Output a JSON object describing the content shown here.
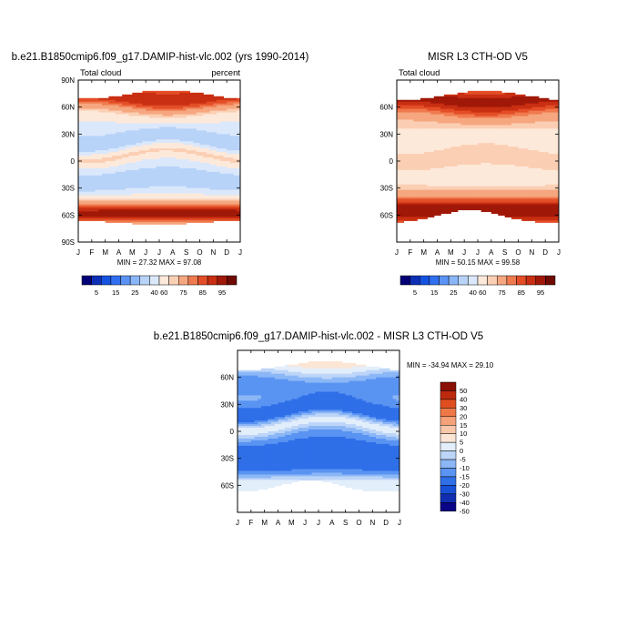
{
  "months": [
    "J",
    "F",
    "M",
    "A",
    "M",
    "J",
    "J",
    "A",
    "S",
    "O",
    "N",
    "D",
    "J"
  ],
  "lat_ticks_full": [
    "90N",
    "60N",
    "30N",
    "0",
    "30S",
    "60S",
    "90S"
  ],
  "lat_ticks_partial": [
    "60N",
    "30N",
    "0",
    "30S",
    "60S"
  ],
  "colorbar_top_labels": [
    "5",
    "15",
    "25",
    "40",
    "60",
    "75",
    "85",
    "95"
  ],
  "colorbar_diff_labels": [
    "50",
    "40",
    "30",
    "20",
    "15",
    "10",
    "5",
    "0",
    "-5",
    "-10",
    "-15",
    "-20",
    "-30",
    "-40",
    "-50"
  ],
  "palette_abs": [
    "#030077",
    "#0c2fb4",
    "#1552e0",
    "#2f6ff0",
    "#5a93f5",
    "#8ab6f7",
    "#b8d3f8",
    "#dbe8fb",
    "#fde9da",
    "#fbcfb4",
    "#f6a77f",
    "#f07a4f",
    "#e34e27",
    "#c92f12",
    "#a01808",
    "#6e0a03"
  ],
  "palette_diff": [
    "#0a0486",
    "#0f2fb0",
    "#1850d8",
    "#2f6fe8",
    "#5a94f2",
    "#8cb7f6",
    "#bcd5f8",
    "#e3eefb",
    "#fbe6d6",
    "#f9c8aa",
    "#f5a27a",
    "#ef7848",
    "#e04e20",
    "#bd2a0e",
    "#8a0f05"
  ],
  "chart_data": [
    {
      "type": "heatmap",
      "title": "b.e21.B1850cmip6.f09_g17.DAMIP-hist-vlc.002 (yrs 1990-2014)",
      "left_label": "Total cloud",
      "right_label": "percent",
      "stats": "MIN =  27.32 MAX =  97.08",
      "x_categories": [
        "J",
        "F",
        "M",
        "A",
        "M",
        "J",
        "J",
        "A",
        "S",
        "O",
        "N",
        "D",
        "J"
      ],
      "ylim": [
        -90,
        90
      ],
      "colorbar_levels": [
        5,
        10,
        15,
        20,
        25,
        30,
        40,
        50,
        60,
        65,
        75,
        80,
        85,
        90,
        95
      ]
    },
    {
      "type": "heatmap",
      "title": "MISR L3 CTH-OD V5",
      "left_label": "Total cloud",
      "stats": "MIN =  50.15 MAX =  99.58",
      "x_categories": [
        "J",
        "F",
        "M",
        "A",
        "M",
        "J",
        "J",
        "A",
        "S",
        "O",
        "N",
        "D",
        "J"
      ],
      "ylim": [
        -90,
        90
      ]
    },
    {
      "type": "heatmap",
      "title": "b.e21.B1850cmip6.f09_g17.DAMIP-hist-vlc.002 - MISR L3 CTH-OD V5",
      "stats": "MIN = -34.94 MAX =  29.10",
      "x_categories": [
        "J",
        "F",
        "M",
        "A",
        "M",
        "J",
        "J",
        "A",
        "S",
        "O",
        "N",
        "D",
        "J"
      ],
      "ylim": [
        -90,
        90
      ],
      "colorbar_levels": [
        -50,
        -40,
        -30,
        -20,
        -15,
        -10,
        -5,
        0,
        5,
        10,
        15,
        20,
        30,
        40,
        50
      ]
    }
  ]
}
